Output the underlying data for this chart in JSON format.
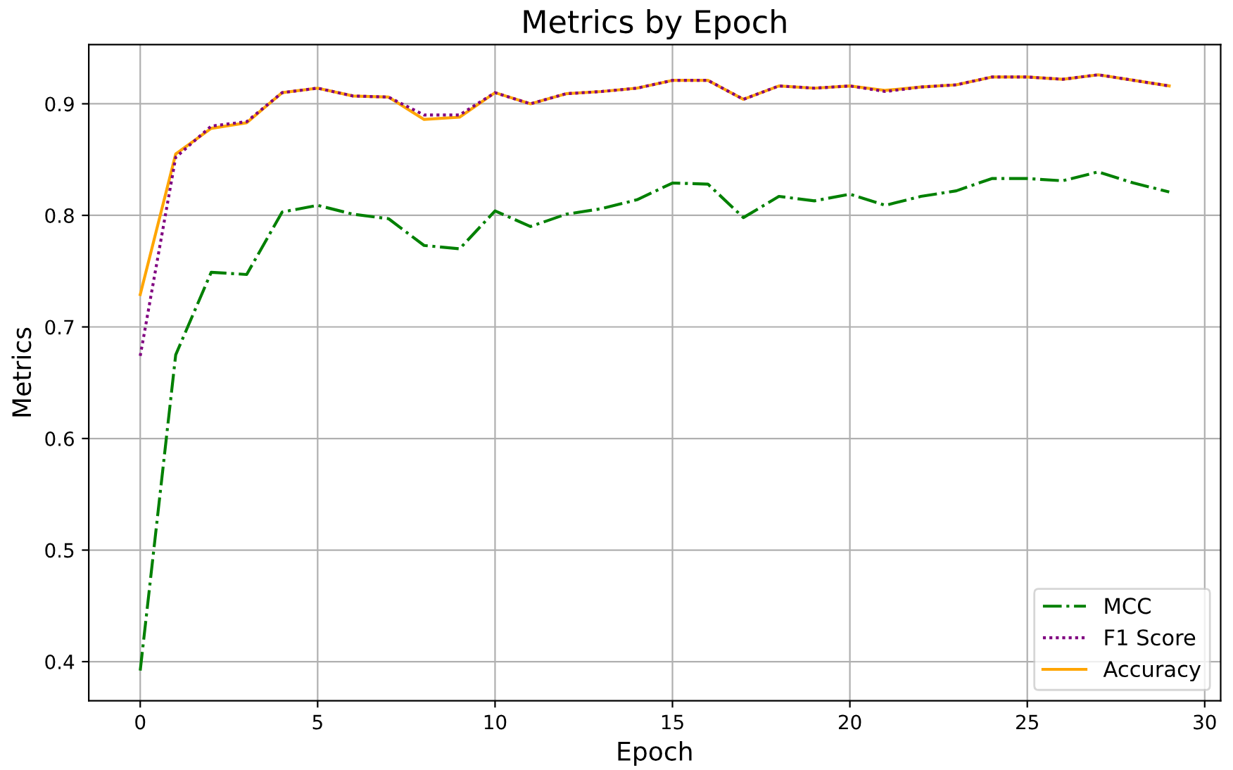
{
  "chart_data": {
    "type": "line",
    "title": "Metrics by Epoch",
    "xlabel": "Epoch",
    "ylabel": "Metrics",
    "x": [
      0,
      1,
      2,
      3,
      4,
      5,
      6,
      7,
      8,
      9,
      10,
      11,
      12,
      13,
      14,
      15,
      16,
      17,
      18,
      19,
      20,
      21,
      22,
      23,
      24,
      25,
      26,
      27,
      28,
      29
    ],
    "series": [
      {
        "name": "MCC",
        "color": "#008000",
        "line_style": "dashdot",
        "values": [
          0.392,
          0.675,
          0.749,
          0.747,
          0.803,
          0.809,
          0.801,
          0.797,
          0.773,
          0.77,
          0.804,
          0.79,
          0.801,
          0.806,
          0.814,
          0.829,
          0.828,
          0.798,
          0.817,
          0.813,
          0.819,
          0.809,
          0.817,
          0.822,
          0.833,
          0.833,
          0.831,
          0.839,
          0.829,
          0.821
        ]
      },
      {
        "name": "F1 Score",
        "color": "#800080",
        "line_style": "dotted",
        "values": [
          0.674,
          0.852,
          0.88,
          0.884,
          0.91,
          0.914,
          0.907,
          0.906,
          0.89,
          0.89,
          0.91,
          0.9,
          0.909,
          0.911,
          0.914,
          0.921,
          0.921,
          0.904,
          0.916,
          0.914,
          0.916,
          0.911,
          0.915,
          0.917,
          0.924,
          0.924,
          0.922,
          0.926,
          0.921,
          0.916
        ]
      },
      {
        "name": "Accuracy",
        "color": "#ffa500",
        "line_style": "solid",
        "values": [
          0.729,
          0.855,
          0.878,
          0.883,
          0.91,
          0.914,
          0.907,
          0.906,
          0.886,
          0.888,
          0.91,
          0.9,
          0.909,
          0.911,
          0.914,
          0.921,
          0.921,
          0.904,
          0.916,
          0.914,
          0.916,
          0.912,
          0.915,
          0.917,
          0.924,
          0.924,
          0.922,
          0.926,
          0.921,
          0.916
        ]
      }
    ],
    "xlim": [
      -1.45,
      30.45
    ],
    "xticks": [
      0,
      5,
      10,
      15,
      20,
      25,
      30
    ],
    "ylim": [
      0.365,
      0.953
    ],
    "yticks": [
      0.4,
      0.5,
      0.6,
      0.7,
      0.8,
      0.9
    ],
    "grid": true,
    "legend": "bottom right",
    "marker": "none"
  }
}
